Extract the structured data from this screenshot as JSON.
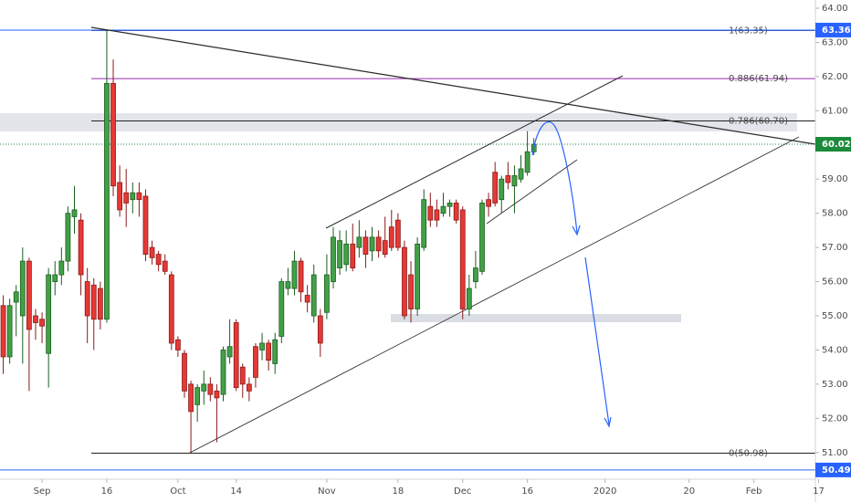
{
  "chart_data": {
    "type": "candlestick",
    "x": [
      0,
      1,
      2,
      3,
      4,
      5,
      6,
      7,
      8,
      9,
      10,
      11,
      12,
      13,
      14,
      15,
      16,
      17,
      18,
      19,
      20,
      21,
      22,
      23,
      24,
      25,
      26,
      27,
      28,
      29,
      30,
      31,
      32,
      33,
      34,
      35,
      36,
      37,
      38,
      39,
      40,
      41,
      42,
      43,
      44,
      45,
      46,
      47,
      48,
      49,
      50,
      51,
      52,
      53,
      54,
      55,
      56,
      57,
      58,
      59,
      60,
      61,
      62,
      63,
      64,
      65,
      66,
      67,
      68,
      69,
      70,
      71,
      72,
      73,
      74,
      75,
      76,
      77,
      78,
      79,
      80,
      81,
      82
    ],
    "open": [
      55.3,
      53.8,
      55.4,
      55.0,
      56.6,
      55.0,
      54.9,
      53.9,
      56.0,
      56.2,
      56.6,
      57.9,
      57.8,
      56.0,
      55.9,
      55.8,
      54.9,
      61.8,
      58.9,
      58.6,
      58.4,
      58.6,
      58.5,
      57.0,
      56.8,
      56.6,
      56.2,
      54.3,
      53.9,
      53.0,
      52.4,
      52.8,
      53.0,
      52.8,
      52.7,
      53.8,
      54.8,
      53.5,
      53.0,
      54.1,
      54.0,
      54.2,
      53.6,
      54.4,
      55.8,
      55.8,
      56.6,
      55.6,
      55.0,
      55.0,
      55.1,
      56.0,
      56.4,
      56.5,
      57.1,
      57.0,
      57.3,
      56.9,
      57.3,
      57.2,
      57.6,
      57.8,
      57.0,
      56.2,
      55.2,
      57.0,
      58.2,
      58.1,
      58.0,
      58.2,
      58.3,
      58.1,
      55.2,
      56.0,
      56.3,
      58.4,
      59.2,
      58.4,
      59.1,
      58.8,
      59.0,
      59.2,
      59.8
    ],
    "high": [
      55.6,
      55.5,
      55.9,
      57.0,
      56.7,
      55.2,
      55.1,
      56.4,
      56.6,
      57.0,
      58.2,
      58.8,
      58.0,
      56.4,
      56.1,
      56.0,
      63.35,
      62.5,
      59.4,
      59.3,
      58.9,
      58.9,
      58.7,
      57.2,
      56.9,
      56.8,
      56.3,
      54.4,
      54.0,
      53.1,
      53.0,
      53.4,
      53.2,
      53.0,
      54.1,
      54.9,
      54.9,
      53.6,
      53.2,
      54.2,
      54.5,
      54.3,
      54.5,
      56.1,
      56.4,
      56.9,
      56.7,
      55.9,
      56.5,
      55.2,
      56.8,
      57.6,
      57.5,
      57.5,
      57.7,
      57.8,
      57.5,
      57.6,
      57.5,
      57.9,
      58.1,
      58.0,
      57.2,
      56.6,
      57.3,
      58.7,
      58.6,
      58.4,
      58.6,
      58.4,
      58.4,
      58.2,
      56.2,
      56.9,
      58.4,
      58.6,
      59.5,
      59.1,
      59.5,
      59.4,
      59.7,
      60.4,
      60.2
    ],
    "low": [
      53.3,
      53.6,
      54.4,
      53.6,
      52.8,
      54.3,
      54.2,
      52.9,
      55.6,
      55.9,
      56.3,
      57.4,
      55.6,
      54.2,
      54.0,
      54.6,
      54.8,
      58.5,
      57.9,
      57.6,
      58.0,
      57.9,
      56.6,
      56.5,
      56.3,
      56.2,
      54.0,
      53.8,
      52.6,
      50.98,
      51.9,
      52.4,
      52.5,
      51.3,
      52.5,
      53.6,
      52.8,
      52.6,
      52.5,
      52.9,
      53.7,
      53.4,
      53.3,
      54.2,
      55.6,
      55.6,
      55.4,
      55.1,
      54.8,
      53.8,
      54.9,
      55.8,
      56.2,
      56.3,
      56.3,
      56.7,
      56.4,
      56.6,
      56.7,
      56.7,
      56.9,
      56.9,
      54.9,
      54.8,
      55.0,
      56.9,
      57.6,
      57.6,
      57.9,
      57.9,
      57.7,
      54.9,
      55.0,
      55.8,
      56.2,
      57.9,
      58.2,
      58.0,
      58.7,
      58.0,
      58.9,
      59.1,
      59.7
    ],
    "close": [
      53.8,
      55.3,
      55.7,
      56.6,
      54.6,
      54.8,
      54.7,
      56.2,
      56.2,
      56.6,
      58.0,
      58.1,
      56.2,
      55.0,
      54.9,
      54.9,
      61.8,
      58.8,
      58.1,
      58.3,
      58.6,
      58.4,
      56.8,
      56.7,
      56.5,
      56.3,
      54.2,
      54.0,
      52.8,
      52.2,
      52.9,
      53.0,
      52.7,
      52.6,
      54.0,
      54.1,
      52.9,
      53.0,
      52.8,
      53.2,
      54.2,
      53.7,
      54.3,
      56.0,
      56.0,
      56.6,
      55.7,
      55.4,
      56.2,
      54.2,
      56.2,
      57.3,
      57.2,
      57.1,
      56.4,
      57.3,
      56.8,
      57.3,
      56.9,
      56.8,
      57.0,
      57.0,
      55.0,
      55.2,
      57.1,
      58.4,
      57.8,
      57.8,
      58.2,
      58.3,
      57.8,
      55.2,
      55.8,
      56.4,
      58.3,
      58.2,
      58.3,
      59.0,
      58.9,
      59.1,
      59.3,
      59.8,
      60.02
    ],
    "up_color": "#43a047",
    "down_color": "#e53935",
    "xlim": [
      -0.5,
      125.5
    ],
    "xticks": [
      {
        "value": 6,
        "label": "Sep"
      },
      {
        "value": 16,
        "label": "16"
      },
      {
        "value": 27,
        "label": "Oct"
      },
      {
        "value": 36,
        "label": "14"
      },
      {
        "value": 50,
        "label": "Nov"
      },
      {
        "value": 61,
        "label": "18"
      },
      {
        "value": 71,
        "label": "Dec"
      },
      {
        "value": 81,
        "label": "16"
      },
      {
        "value": 93,
        "label": "2020"
      },
      {
        "value": 106,
        "label": "20"
      },
      {
        "value": 116,
        "label": "Feb"
      },
      {
        "value": 126,
        "label": "17"
      }
    ],
    "ylim": [
      50.22,
      64.24
    ],
    "yticks": [
      {
        "value": 51,
        "label": "51.00"
      },
      {
        "value": 52,
        "label": "52.00"
      },
      {
        "value": 53,
        "label": "53.00"
      },
      {
        "value": 54,
        "label": "54.00"
      },
      {
        "value": 55,
        "label": "55.00"
      },
      {
        "value": 56,
        "label": "56.00"
      },
      {
        "value": 57,
        "label": "57.00"
      },
      {
        "value": 58,
        "label": "58.00"
      },
      {
        "value": 59,
        "label": "59.00"
      },
      {
        "value": 60,
        "label": "60.00"
      },
      {
        "value": 61,
        "label": "61.00"
      },
      {
        "value": 62,
        "label": "62.00"
      },
      {
        "value": 63,
        "label": "63.00"
      },
      {
        "value": 64,
        "label": "64.00"
      }
    ],
    "fib_levels": [
      {
        "label": "1(63.35)",
        "value": 63.35,
        "color": "#1a237e"
      },
      {
        "label": "0.886(61.94)",
        "value": 61.94,
        "color": "#9c27b0"
      },
      {
        "label": "0.786(60.70)",
        "value": 60.7,
        "color": "#222222"
      },
      {
        "label": "0(50.98)",
        "value": 50.98,
        "color": "#222222"
      }
    ],
    "price_lines": [
      {
        "value": 63.36,
        "color": "#2962ff",
        "style": "solid"
      },
      {
        "value": 60.02,
        "color": "#1b8a3a",
        "style": "dotted"
      },
      {
        "value": 50.49,
        "color": "#2962ff",
        "style": "solid"
      }
    ]
  }
}
